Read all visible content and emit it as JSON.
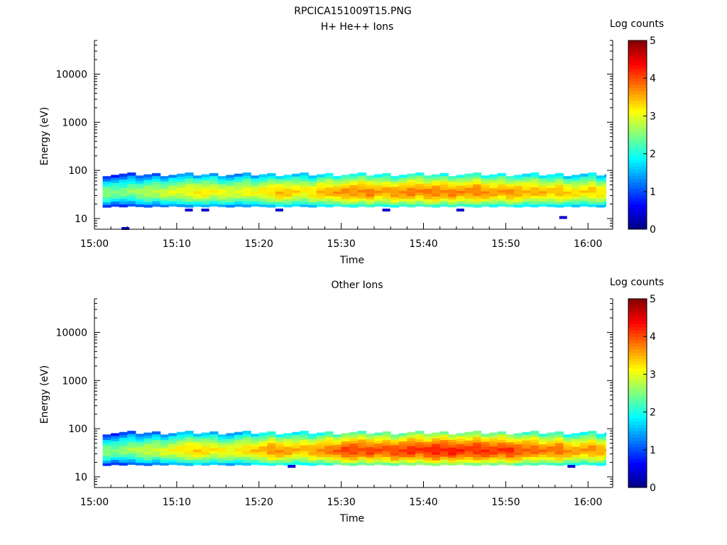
{
  "figure_title": "RPCICA151009T15.PNG",
  "colors": {
    "colormap": [
      "#00007f",
      "#0000ff",
      "#007fff",
      "#00ffff",
      "#7fff7f",
      "#ffff00",
      "#ff7f00",
      "#ff0000",
      "#7f0000"
    ]
  },
  "chart_data": [
    {
      "type": "heatmap",
      "title": "H+ He++ Ions",
      "xlabel": "Time",
      "ylabel": "Energy (eV)",
      "x_ticks": [
        "15:00",
        "15:10",
        "15:20",
        "15:30",
        "15:40",
        "15:50",
        "16:00"
      ],
      "x_range_minutes": [
        0,
        63
      ],
      "y_ticks": [
        "10",
        "100",
        "1000",
        "10000"
      ],
      "y_scale": "log",
      "y_range": [
        6,
        50000
      ],
      "colorbar": {
        "label": "Log counts",
        "ticks": [
          "0",
          "1",
          "2",
          "3",
          "4",
          "5"
        ],
        "range": [
          0,
          5
        ]
      },
      "band": {
        "energy_low_eV": 18,
        "energy_high_eV": 95
      },
      "band_intensity_by_minute": [
        2.6,
        2.5,
        2.5,
        2.6,
        2.7,
        2.8,
        2.8,
        2.9,
        3.0,
        3.0,
        3.1,
        3.2,
        3.2,
        3.1,
        3.1,
        3.0,
        3.0,
        3.1,
        3.1,
        3.2,
        3.3,
        3.5,
        3.4,
        3.3,
        3.2,
        3.3,
        3.5,
        3.5,
        3.6,
        3.7,
        3.7,
        3.7,
        3.8,
        3.6,
        3.6,
        3.7,
        3.7,
        3.8,
        3.7,
        3.8,
        3.8,
        3.7,
        3.8,
        3.7,
        3.7,
        3.8,
        3.7,
        3.6,
        3.6,
        3.7,
        3.6,
        3.5,
        3.5,
        3.5,
        3.4,
        3.5,
        3.4,
        3.3,
        3.3,
        3.4,
        3.3,
        3.2,
        3.3
      ],
      "isolated_points": [
        {
          "minute": 3.3,
          "energy_eV": 6.2
        },
        {
          "minute": 11,
          "energy_eV": 15
        },
        {
          "minute": 13,
          "energy_eV": 15
        },
        {
          "minute": 22,
          "energy_eV": 15
        },
        {
          "minute": 35,
          "energy_eV": 15
        },
        {
          "minute": 44,
          "energy_eV": 15
        },
        {
          "minute": 56.5,
          "energy_eV": 10.5
        }
      ]
    },
    {
      "type": "heatmap",
      "title": "Other Ions",
      "xlabel": "Time",
      "ylabel": "Energy (eV)",
      "x_ticks": [
        "15:00",
        "15:10",
        "15:20",
        "15:30",
        "15:40",
        "15:50",
        "16:00"
      ],
      "x_range_minutes": [
        0,
        63
      ],
      "y_ticks": [
        "10",
        "100",
        "1000",
        "10000"
      ],
      "y_scale": "log",
      "y_range": [
        6,
        50000
      ],
      "colorbar": {
        "label": "Log counts",
        "ticks": [
          "0",
          "1",
          "2",
          "3",
          "4",
          "5"
        ],
        "range": [
          0,
          5
        ]
      },
      "band": {
        "energy_low_eV": 18,
        "energy_high_eV": 95
      },
      "band_intensity_by_minute": [
        2.6,
        2.5,
        2.6,
        2.7,
        2.8,
        2.9,
        2.9,
        3.0,
        3.1,
        3.2,
        3.3,
        3.4,
        3.3,
        3.2,
        3.2,
        3.1,
        3.2,
        3.3,
        3.4,
        3.5,
        3.7,
        3.7,
        3.6,
        3.5,
        3.5,
        3.6,
        3.7,
        3.8,
        3.9,
        4.1,
        4.1,
        4.0,
        4.1,
        4.0,
        4.0,
        4.1,
        4.1,
        4.2,
        4.1,
        4.2,
        4.3,
        4.2,
        4.3,
        4.2,
        4.1,
        4.2,
        4.2,
        4.1,
        4.1,
        4.2,
        4.0,
        3.9,
        3.9,
        3.8,
        3.8,
        3.9,
        3.7,
        3.6,
        3.6,
        3.7,
        3.6,
        3.5,
        3.6
      ],
      "isolated_points": [
        {
          "minute": 23.5,
          "energy_eV": 16.5
        },
        {
          "minute": 57.5,
          "energy_eV": 16.5
        }
      ]
    }
  ]
}
